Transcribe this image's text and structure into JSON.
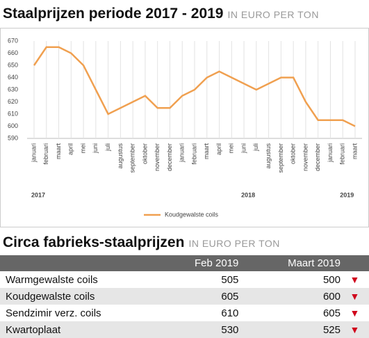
{
  "chart_data": {
    "type": "line",
    "title": "Staalprijzen periode 2017 - 2019",
    "subtitle": "IN EURO PER TON",
    "categories": [
      "januari",
      "februari",
      "maart",
      "april",
      "mei",
      "juni",
      "juli",
      "augustus",
      "september",
      "oktober",
      "november",
      "december",
      "januari",
      "februari",
      "maart",
      "april",
      "mei",
      "juni",
      "juli",
      "augustus",
      "september",
      "oktober",
      "november",
      "december",
      "januari",
      "februari",
      "maart"
    ],
    "years": [
      "2017",
      "2018",
      "2019"
    ],
    "series": [
      {
        "name": "Koudgewalste coils",
        "color": "#f0a050",
        "values": [
          650,
          665,
          665,
          660,
          650,
          630,
          610,
          615,
          620,
          625,
          615,
          615,
          625,
          630,
          640,
          645,
          640,
          635,
          630,
          635,
          640,
          640,
          620,
          605,
          605,
          605,
          600
        ]
      }
    ],
    "ylim": [
      590,
      670
    ],
    "yticks": [
      590,
      600,
      610,
      620,
      630,
      640,
      650,
      660,
      670
    ],
    "grid": true,
    "legend": "bottom"
  },
  "table": {
    "title": "Circa fabrieks-staalprijzen",
    "subtitle": "IN EURO PER TON",
    "columns": [
      "Feb 2019",
      "Maart 2019"
    ],
    "rows": [
      [
        "Warmgewalste coils",
        505,
        500
      ],
      [
        "Koudgewalste coils",
        605,
        600
      ],
      [
        "Sendzimir verz. coils",
        610,
        605
      ],
      [
        "Kwartoplaat",
        530,
        525
      ]
    ]
  }
}
